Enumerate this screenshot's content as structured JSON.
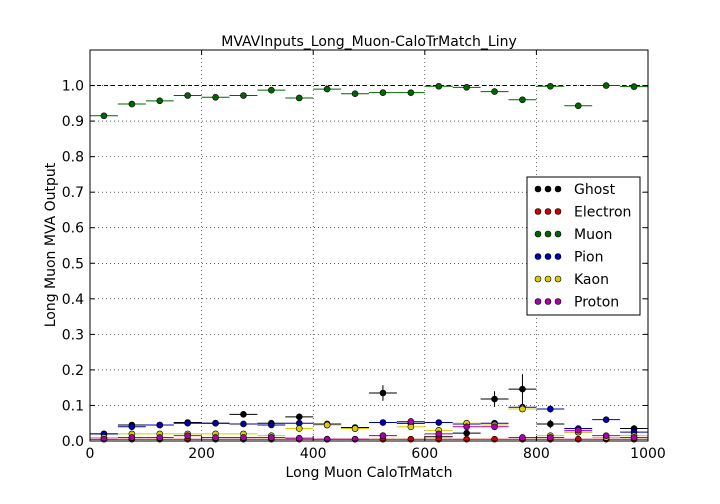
{
  "chart_data": {
    "type": "scatter",
    "title": "MVAVInputs_Long_Muon-CaloTrMatch_Liny",
    "xlabel": "Long Muon CaloTrMatch",
    "ylabel": "Long Muon MVA Output",
    "xlim": [
      0,
      1000
    ],
    "ylim": [
      0,
      1.1
    ],
    "xticks": [
      "0",
      "200",
      "400",
      "600",
      "800",
      "1000"
    ],
    "yticks": [
      "0.0",
      "0.1",
      "0.2",
      "0.3",
      "0.4",
      "0.5",
      "0.6",
      "0.7",
      "0.8",
      "0.9",
      "1.0"
    ],
    "grid": true,
    "reference_line_y": 1.0,
    "legend_position": "center-right",
    "bin_width": 50,
    "x": [
      25,
      75,
      125,
      175,
      225,
      275,
      325,
      375,
      425,
      475,
      525,
      575,
      625,
      675,
      725,
      775,
      825,
      875,
      925,
      975
    ],
    "series": [
      {
        "name": "Ghost",
        "color": "#000000",
        "values": [
          0.02,
          0.045,
          0.045,
          0.052,
          0.05,
          0.075,
          0.05,
          0.068,
          0.045,
          0.038,
          0.135,
          0.05,
          0.012,
          0.022,
          0.118,
          0.146,
          0.048,
          0.025,
          null,
          0.035
        ],
        "yerr": [
          0.004,
          0.005,
          0.005,
          0.005,
          0.005,
          0.007,
          0.006,
          0.008,
          0.007,
          0.008,
          0.022,
          0.008,
          0.005,
          0.008,
          0.022,
          0.042,
          0.012,
          0.008,
          null,
          0.008
        ]
      },
      {
        "name": "Electron",
        "color": "#cc0000",
        "values": [
          0.005,
          0.005,
          0.005,
          0.005,
          0.005,
          0.005,
          0.005,
          0.005,
          0.005,
          0.005,
          0.005,
          0.005,
          0.005,
          0.005,
          0.005,
          0.005,
          0.005,
          0.005,
          0.005,
          0.005
        ],
        "yerr": [
          0.002,
          0.002,
          0.002,
          0.002,
          0.002,
          0.002,
          0.002,
          0.002,
          0.002,
          0.002,
          0.002,
          0.002,
          0.002,
          0.002,
          0.002,
          0.002,
          0.002,
          0.002,
          0.002,
          0.002
        ]
      },
      {
        "name": "Muon",
        "color": "#006600",
        "values": [
          0.915,
          0.948,
          0.957,
          0.972,
          0.967,
          0.972,
          0.987,
          0.965,
          0.99,
          0.977,
          0.98,
          0.98,
          0.998,
          0.995,
          0.983,
          0.96,
          0.998,
          0.943,
          1.0,
          0.997
        ],
        "yerr": [
          0.004,
          0.004,
          0.004,
          0.004,
          0.004,
          0.004,
          0.004,
          0.004,
          0.004,
          0.004,
          0.004,
          0.004,
          0.003,
          0.003,
          0.004,
          0.006,
          0.003,
          0.007,
          0.002,
          0.003
        ]
      },
      {
        "name": "Pion",
        "color": "#0000aa",
        "values": [
          0.02,
          0.04,
          0.045,
          0.05,
          0.05,
          0.048,
          0.045,
          0.05,
          0.048,
          0.035,
          0.052,
          0.05,
          0.052,
          0.048,
          0.05,
          0.095,
          0.09,
          0.035,
          0.06,
          0.025
        ],
        "yerr": [
          0.004,
          0.004,
          0.004,
          0.004,
          0.004,
          0.004,
          0.004,
          0.005,
          0.005,
          0.006,
          0.006,
          0.006,
          0.006,
          0.007,
          0.007,
          0.01,
          0.01,
          0.008,
          0.007,
          0.006
        ]
      },
      {
        "name": "Kaon",
        "color": "#ddcc00",
        "values": [
          0.01,
          0.02,
          0.02,
          0.02,
          0.02,
          0.02,
          0.015,
          0.035,
          0.045,
          0.035,
          0.015,
          0.04,
          0.03,
          0.05,
          0.045,
          0.09,
          0.015,
          0.025,
          0.01,
          0.015
        ],
        "yerr": [
          0.004,
          0.004,
          0.004,
          0.004,
          0.004,
          0.004,
          0.004,
          0.005,
          0.005,
          0.006,
          0.006,
          0.006,
          0.006,
          0.007,
          0.007,
          0.01,
          0.006,
          0.007,
          0.005,
          0.005
        ]
      },
      {
        "name": "Proton",
        "color": "#aa00aa",
        "values": [
          0.005,
          0.01,
          0.01,
          0.015,
          0.01,
          0.01,
          0.01,
          0.008,
          0.005,
          0.005,
          0.015,
          0.055,
          0.02,
          0.04,
          0.04,
          0.01,
          0.01,
          0.03,
          0.015,
          0.01
        ],
        "yerr": [
          0.003,
          0.003,
          0.003,
          0.003,
          0.003,
          0.003,
          0.003,
          0.003,
          0.003,
          0.003,
          0.004,
          0.006,
          0.005,
          0.006,
          0.006,
          0.004,
          0.004,
          0.006,
          0.004,
          0.004
        ]
      }
    ]
  }
}
